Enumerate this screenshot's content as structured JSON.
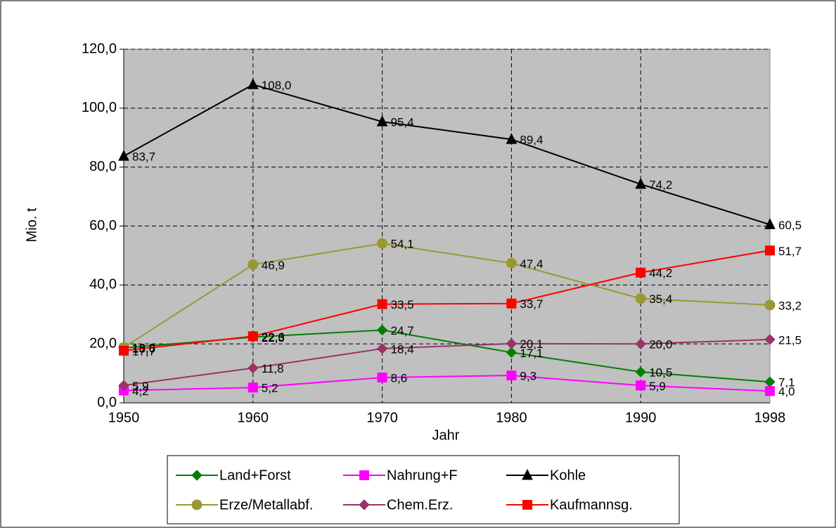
{
  "chart_data": {
    "type": "line",
    "x_label": "Jahr",
    "y_label": "Mio. t",
    "categories": [
      "1950",
      "1960",
      "1970",
      "1980",
      "1990",
      "1998"
    ],
    "ylim": [
      0,
      120
    ],
    "yticks": [
      {
        "value": 0,
        "label": "0,0"
      },
      {
        "value": 20,
        "label": "20,0"
      },
      {
        "value": 40,
        "label": "40,0"
      },
      {
        "value": 60,
        "label": "60,0"
      },
      {
        "value": 80,
        "label": "80,0"
      },
      {
        "value": 100,
        "label": "100,0"
      },
      {
        "value": 120,
        "label": "120,0"
      }
    ],
    "grid": true,
    "legend": "bottom",
    "series": [
      {
        "name": "Land+Forst",
        "color": "#008000",
        "marker": "diamond",
        "values": [
          18.6,
          22.3,
          24.7,
          17.1,
          10.5,
          7.1
        ],
        "value_labels": [
          "18,6",
          "22,3",
          "24,7",
          "17,1",
          "10,5",
          "7,1"
        ]
      },
      {
        "name": "Nahrung+F",
        "color": "#ff00ff",
        "marker": "square",
        "values": [
          4.2,
          5.2,
          8.6,
          9.3,
          5.9,
          4.0
        ],
        "value_labels": [
          "4,2",
          "5,2",
          "8,6",
          "9,3",
          "5,9",
          "4,0"
        ]
      },
      {
        "name": "Kohle",
        "color": "#000000",
        "marker": "triangle",
        "values": [
          83.7,
          108.0,
          95.4,
          89.4,
          74.2,
          60.5
        ],
        "value_labels": [
          "83,7",
          "108,0",
          "95,4",
          "89,4",
          "74,2",
          "60,5"
        ]
      },
      {
        "name": "Erze/Metallabf.",
        "color": "#999933",
        "marker": "circle",
        "values": [
          18.8,
          46.9,
          54.1,
          47.4,
          35.4,
          33.2
        ],
        "value_labels": [
          "18,8",
          "46,9",
          "54,1",
          "47,4",
          "35,4",
          "33,2"
        ]
      },
      {
        "name": "Chem.Erz.",
        "color": "#993366",
        "marker": "diamond",
        "values": [
          5.9,
          11.8,
          18.4,
          20.1,
          20.0,
          21.5
        ],
        "value_labels": [
          "5,9",
          "11,8",
          "18,4",
          "20,1",
          "20,0",
          "21,5"
        ]
      },
      {
        "name": "Kaufmannsg.",
        "color": "#ff0000",
        "marker": "square",
        "values": [
          17.7,
          22.6,
          33.5,
          33.7,
          44.2,
          51.7
        ],
        "value_labels": [
          "17,7",
          "22,6",
          "33,5",
          "33,7",
          "44,2",
          "51,7"
        ]
      }
    ]
  }
}
